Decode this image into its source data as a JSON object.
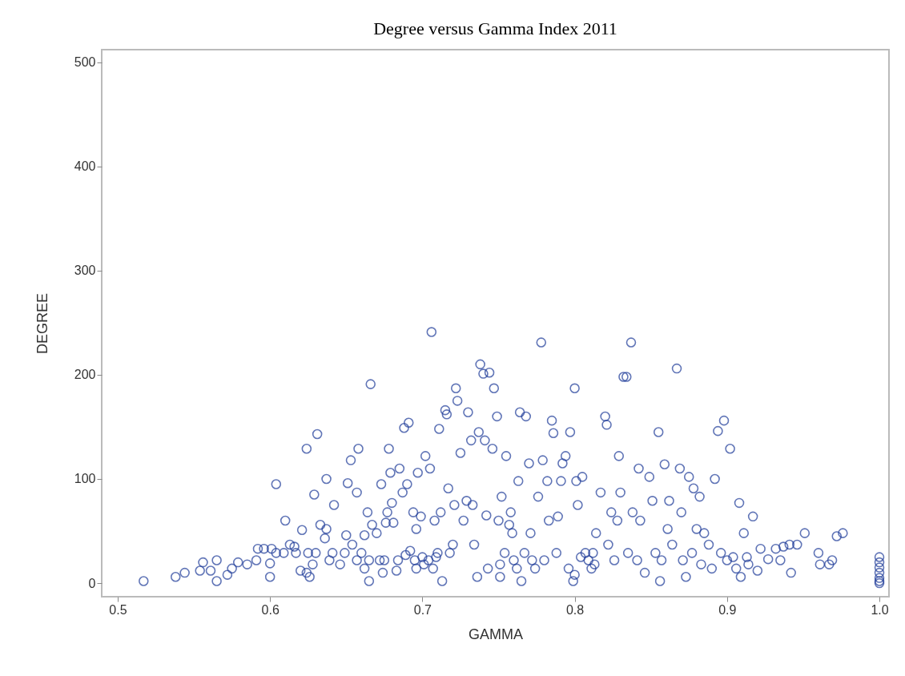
{
  "chart_data": {
    "type": "scatter",
    "title": "Degree versus Gamma Index 2011",
    "xlabel": "GAMMA",
    "ylabel": "DEGREE",
    "xlim": [
      0.4895,
      1.0063
    ],
    "ylim": [
      -13,
      512
    ],
    "xticks": [
      0.5,
      0.6,
      0.7,
      0.8,
      0.9,
      {
        "value": 1,
        "label": "1.0"
      }
    ],
    "yticks": [
      0,
      100,
      200,
      300,
      400,
      500
    ],
    "grid": false,
    "marker": "circle",
    "series": [
      {
        "color": "#1f3c99",
        "x": [
          0.517,
          0.538,
          0.544,
          0.554,
          0.556,
          0.561,
          0.565,
          0.565,
          0.572,
          0.575,
          0.579,
          0.585,
          0.591,
          0.592,
          0.596,
          0.6,
          0.6,
          0.601,
          0.604,
          0.604,
          0.609,
          0.61,
          0.613,
          0.616,
          0.617,
          0.62,
          0.621,
          0.624,
          0.625,
          0.626,
          0.628,
          0.629,
          0.624,
          0.631,
          0.63,
          0.633,
          0.636,
          0.637,
          0.637,
          0.639,
          0.641,
          0.642,
          0.646,
          0.649,
          0.65,
          0.651,
          0.653,
          0.654,
          0.657,
          0.657,
          0.658,
          0.66,
          0.662,
          0.662,
          0.664,
          0.665,
          0.665,
          0.666,
          0.667,
          0.67,
          0.672,
          0.673,
          0.674,
          0.675,
          0.676,
          0.677,
          0.678,
          0.679,
          0.68,
          0.681,
          0.683,
          0.684,
          0.685,
          0.687,
          0.688,
          0.689,
          0.69,
          0.691,
          0.692,
          0.694,
          0.695,
          0.696,
          0.696,
          0.697,
          0.699,
          0.7,
          0.701,
          0.702,
          0.704,
          0.705,
          0.706,
          0.707,
          0.708,
          0.709,
          0.71,
          0.711,
          0.712,
          0.713,
          0.715,
          0.716,
          0.717,
          0.718,
          0.72,
          0.721,
          0.722,
          0.723,
          0.725,
          0.727,
          0.729,
          0.73,
          0.732,
          0.733,
          0.734,
          0.736,
          0.737,
          0.738,
          0.74,
          0.741,
          0.742,
          0.743,
          0.744,
          0.746,
          0.747,
          0.749,
          0.75,
          0.751,
          0.751,
          0.752,
          0.754,
          0.755,
          0.757,
          0.758,
          0.759,
          0.76,
          0.762,
          0.763,
          0.764,
          0.765,
          0.767,
          0.768,
          0.77,
          0.771,
          0.772,
          0.774,
          0.776,
          0.778,
          0.779,
          0.78,
          0.782,
          0.783,
          0.785,
          0.786,
          0.788,
          0.789,
          0.791,
          0.792,
          0.794,
          0.796,
          0.797,
          0.799,
          0.8,
          0.8,
          0.801,
          0.802,
          0.804,
          0.805,
          0.807,
          0.809,
          0.811,
          0.812,
          0.813,
          0.814,
          0.817,
          0.82,
          0.821,
          0.822,
          0.824,
          0.826,
          0.828,
          0.829,
          0.83,
          0.832,
          0.834,
          0.835,
          0.837,
          0.838,
          0.841,
          0.842,
          0.843,
          0.846,
          0.849,
          0.851,
          0.853,
          0.855,
          0.856,
          0.857,
          0.859,
          0.861,
          0.862,
          0.864,
          0.867,
          0.869,
          0.87,
          0.871,
          0.873,
          0.875,
          0.877,
          0.878,
          0.88,
          0.882,
          0.883,
          0.885,
          0.888,
          0.89,
          0.892,
          0.894,
          0.896,
          0.898,
          0.9,
          0.902,
          0.904,
          0.906,
          0.908,
          0.909,
          0.911,
          0.913,
          0.914,
          0.917,
          0.92,
          0.922,
          0.927,
          0.932,
          0.935,
          0.937,
          0.941,
          0.942,
          0.946,
          0.951,
          0.96,
          0.961,
          0.967,
          0.969,
          0.972,
          0.976,
          1,
          1,
          1,
          1,
          1,
          1,
          1
        ],
        "values": [
          2,
          6,
          10,
          12,
          20,
          12,
          22,
          2,
          8,
          14,
          20,
          18,
          22,
          33,
          33,
          19,
          6,
          33,
          29,
          95,
          29,
          60,
          37,
          35,
          29,
          12,
          51,
          10,
          29,
          6,
          18,
          85,
          129,
          143,
          29,
          56,
          43,
          52,
          100,
          22,
          29,
          75,
          18,
          29,
          46,
          96,
          118,
          37,
          22,
          87,
          129,
          29,
          14,
          46,
          68,
          22,
          2,
          191,
          56,
          48,
          22,
          95,
          10,
          22,
          58,
          68,
          129,
          106,
          77,
          58,
          12,
          22,
          110,
          87,
          149,
          27,
          95,
          154,
          31,
          68,
          22,
          14,
          52,
          106,
          64,
          25,
          18,
          122,
          22,
          110,
          241,
          14,
          60,
          25,
          29,
          148,
          68,
          2,
          166,
          162,
          91,
          29,
          37,
          75,
          187,
          175,
          125,
          60,
          79,
          164,
          137,
          75,
          37,
          6,
          145,
          210,
          201,
          137,
          65,
          14,
          202,
          129,
          187,
          160,
          60,
          18,
          6,
          83,
          29,
          122,
          56,
          68,
          48,
          22,
          14,
          98,
          164,
          2,
          29,
          160,
          115,
          48,
          22,
          14,
          83,
          231,
          118,
          22,
          98,
          60,
          156,
          144,
          29,
          64,
          98,
          115,
          122,
          14,
          145,
          2,
          8,
          187,
          98,
          75,
          25,
          102,
          29,
          22,
          14,
          29,
          18,
          48,
          87,
          160,
          152,
          37,
          68,
          22,
          60,
          122,
          87,
          198,
          198,
          29,
          231,
          68,
          22,
          110,
          60,
          10,
          102,
          79,
          29,
          145,
          2,
          22,
          114,
          52,
          79,
          37,
          206,
          110,
          68,
          22,
          6,
          102,
          29,
          91,
          52,
          83,
          18,
          48,
          37,
          14,
          100,
          146,
          29,
          156,
          22,
          129,
          25,
          14,
          77,
          6,
          48,
          25,
          18,
          64,
          12,
          33,
          23,
          33,
          22,
          35,
          37,
          10,
          37,
          48,
          29,
          18,
          18,
          22,
          45,
          48,
          25,
          20,
          15,
          10,
          5,
          2,
          0
        ]
      }
    ]
  }
}
